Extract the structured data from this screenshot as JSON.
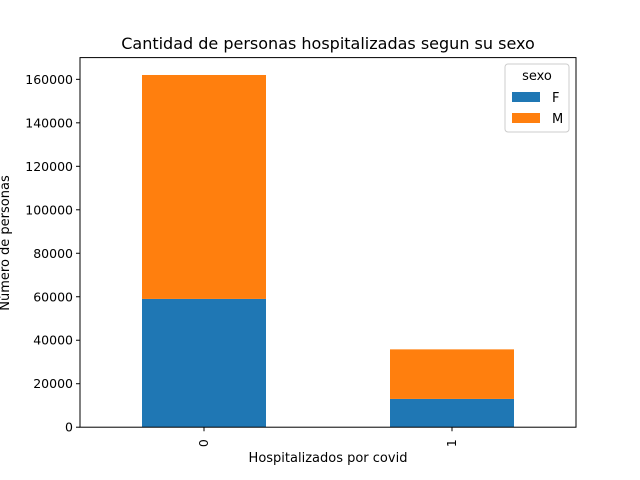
{
  "chart_data": {
    "type": "bar",
    "stacked": true,
    "title": "Cantidad de personas hospitalizadas segun su sexo",
    "xlabel": "Hospitalizados por covid",
    "ylabel": "Número de personas",
    "categories": [
      "0",
      "1"
    ],
    "series": [
      {
        "name": "F",
        "values": [
          59000,
          13000
        ],
        "color": "#1f77b4"
      },
      {
        "name": "M",
        "values": [
          103000,
          22800
        ],
        "color": "#ff7f0e"
      }
    ],
    "ylim": [
      0,
      170000
    ],
    "yticks": [
      0,
      20000,
      40000,
      60000,
      80000,
      100000,
      120000,
      140000,
      160000
    ],
    "legend": {
      "title": "sexo",
      "placement": "top-right"
    },
    "grid": false
  }
}
